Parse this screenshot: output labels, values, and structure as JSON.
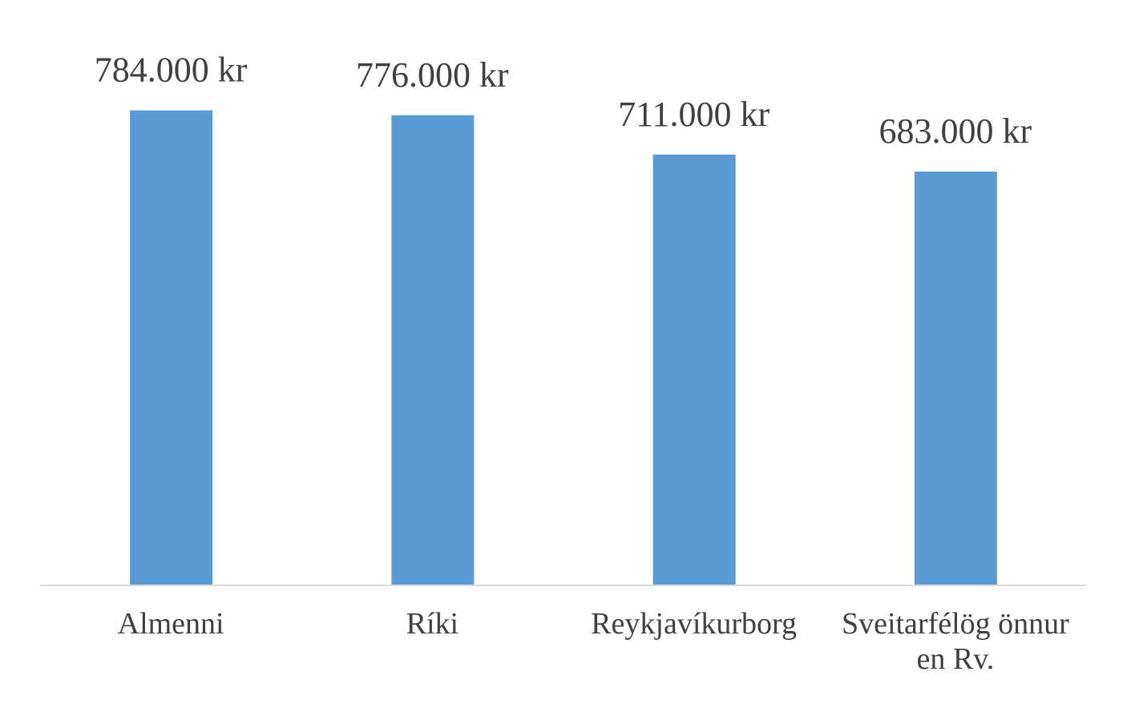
{
  "chart_data": {
    "type": "bar",
    "categories": [
      "Almenni",
      "Ríki",
      "Reykjavíkurborg",
      "Sveitarfélög önnur en Rv."
    ],
    "values": [
      784000,
      776000,
      711000,
      683000
    ],
    "value_labels": [
      "784.000 kr",
      "776.000 kr",
      "711.000 kr",
      "683.000 kr"
    ],
    "color": "#5b9bd5",
    "ylim": [
      0,
      900000
    ]
  }
}
